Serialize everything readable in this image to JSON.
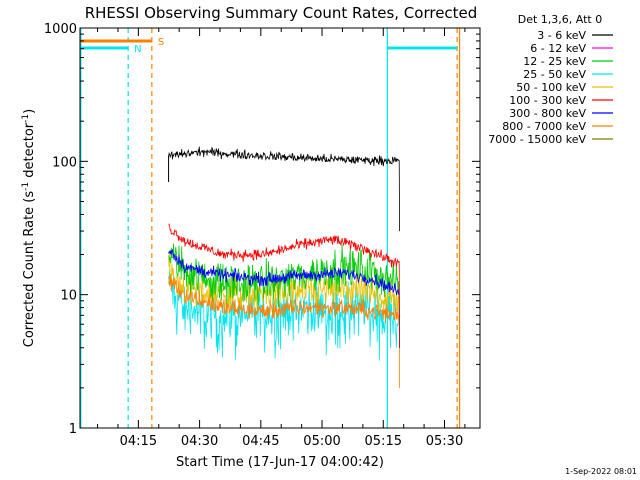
{
  "chart_data": {
    "type": "line",
    "title": "RHESSI Observing Summary Count Rates, Corrected",
    "xlabel": "Start Time (17-Jun-17 04:00:42)",
    "ylabel_main": "Corrected Count Rate (s",
    "ylabel_sup1": "-1",
    "ylabel_mid": " detector",
    "ylabel_sup2": "-1",
    "ylabel_end": ")",
    "yscale": "log",
    "ylim": [
      1,
      1000
    ],
    "xlim_minutes": [
      0,
      98
    ],
    "x_ticks": [
      {
        "label": "04:15",
        "minutes": 14.3
      },
      {
        "label": "04:30",
        "minutes": 29.3
      },
      {
        "label": "04:45",
        "minutes": 44.3
      },
      {
        "label": "05:00",
        "minutes": 59.3
      },
      {
        "label": "05:15",
        "minutes": 74.3
      },
      {
        "label": "05:30",
        "minutes": 89.3
      }
    ],
    "y_ticks": [
      {
        "label": "1",
        "value": 1
      },
      {
        "label": "10",
        "value": 10
      },
      {
        "label": "100",
        "value": 100
      },
      {
        "label": "1000",
        "value": 1000
      }
    ],
    "legend_title": "Det 1,3,6, Att 0",
    "legend_position": "right",
    "series": [
      {
        "name": "3 - 6 keV",
        "color": "#000000",
        "base": 115,
        "start": 21.7,
        "end": 78.2,
        "noise": 0.05,
        "points": [
          [
            21.7,
            110
          ],
          [
            30,
            118
          ],
          [
            40,
            112
          ],
          [
            50,
            108
          ],
          [
            60,
            104
          ],
          [
            70,
            102
          ],
          [
            78,
            101
          ]
        ]
      },
      {
        "name": "6 - 12 keV",
        "color": "#ff00ff",
        "base": 0,
        "start": 0,
        "end": 0,
        "noise": 0,
        "points": []
      },
      {
        "name": "12 - 25 keV",
        "color": "#00cc00",
        "base": 13,
        "start": 21.7,
        "end": 78.2,
        "noise": 0.22,
        "points": [
          [
            21.7,
            20
          ],
          [
            26,
            15
          ],
          [
            35,
            12
          ],
          [
            45,
            12
          ],
          [
            55,
            14
          ],
          [
            65,
            16
          ],
          [
            72,
            15
          ],
          [
            78,
            12
          ]
        ]
      },
      {
        "name": "25 - 50 keV",
        "color": "#00e5ee",
        "base": 8,
        "start": 21.7,
        "end": 78.2,
        "noise": 0.25,
        "points": [
          [
            21.7,
            12
          ],
          [
            26,
            8
          ],
          [
            35,
            7
          ],
          [
            45,
            7.5
          ],
          [
            55,
            8
          ],
          [
            65,
            8
          ],
          [
            72,
            8
          ],
          [
            78,
            7.5
          ]
        ]
      },
      {
        "name": "50 - 100 keV",
        "color": "#e8c000",
        "base": 10,
        "start": 21.7,
        "end": 78.2,
        "noise": 0.2,
        "points": [
          [
            21.7,
            15
          ],
          [
            26,
            11
          ],
          [
            35,
            10
          ],
          [
            45,
            10
          ],
          [
            55,
            10.5
          ],
          [
            65,
            11
          ],
          [
            72,
            10
          ],
          [
            78,
            9
          ]
        ]
      },
      {
        "name": "100 - 300 keV",
        "color": "#ff0000",
        "base": 22,
        "start": 21.7,
        "end": 78.2,
        "noise": 0.06,
        "points": [
          [
            21.7,
            32
          ],
          [
            26,
            25
          ],
          [
            35,
            20
          ],
          [
            45,
            20
          ],
          [
            55,
            24
          ],
          [
            62,
            26
          ],
          [
            70,
            22
          ],
          [
            78,
            17
          ]
        ]
      },
      {
        "name": "300 - 800 keV",
        "color": "#0000ff",
        "base": 14,
        "start": 21.7,
        "end": 78.2,
        "noise": 0.07,
        "points": [
          [
            21.7,
            22
          ],
          [
            26,
            16
          ],
          [
            35,
            14
          ],
          [
            45,
            13
          ],
          [
            55,
            14
          ],
          [
            65,
            14.5
          ],
          [
            72,
            13
          ],
          [
            78,
            10.5
          ]
        ]
      },
      {
        "name": "800 - 7000 keV",
        "color": "#ff8000",
        "base": 8,
        "start": 21.7,
        "end": 78.2,
        "noise": 0.1,
        "points": [
          [
            21.7,
            13
          ],
          [
            26,
            10
          ],
          [
            35,
            8
          ],
          [
            45,
            7.5
          ],
          [
            55,
            8
          ],
          [
            65,
            8
          ],
          [
            72,
            7.5
          ],
          [
            78,
            7
          ]
        ]
      },
      {
        "name": "7000 - 15000 keV",
        "color": "#808000",
        "base": 0,
        "start": 0,
        "end": 0,
        "noise": 0,
        "points": []
      }
    ],
    "annotations": [
      {
        "label": "S",
        "color": "#ff8000"
      },
      {
        "label": "N",
        "color": "#00e5ee"
      }
    ],
    "footer_date": "1-Sep-2022 08:01"
  }
}
